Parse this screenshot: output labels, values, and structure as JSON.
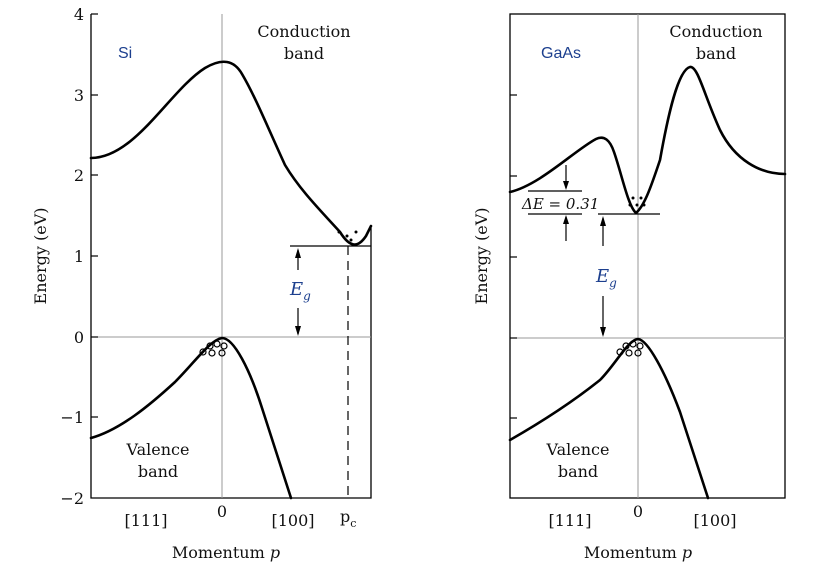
{
  "left_panel": {
    "material": "Si",
    "y_axis_label": "Energy (eV)",
    "y_ticks": [
      "4",
      "3",
      "2",
      "1",
      "0",
      "−1",
      "−2"
    ],
    "conduction_label": [
      "Conduction",
      "band"
    ],
    "valence_label": [
      "Valence",
      "band"
    ],
    "gap_label": "E",
    "gap_sub": "g",
    "x_labels": [
      "[111]",
      "0",
      "[100]"
    ],
    "pc_label": "p",
    "pc_sub": "c",
    "x_axis_label": "Momentum",
    "x_axis_var": "p"
  },
  "right_panel": {
    "material": "GaAs",
    "y_axis_label": "Energy (eV)",
    "conduction_label": [
      "Conduction",
      "band"
    ],
    "valence_label": [
      "Valence",
      "band"
    ],
    "gap_label": "E",
    "gap_sub": "g",
    "delta_label": "ΔE = 0.31",
    "x_labels": [
      "[111]",
      "0",
      "[100]"
    ],
    "x_axis_label": "Momentum",
    "x_axis_var": "p"
  }
}
